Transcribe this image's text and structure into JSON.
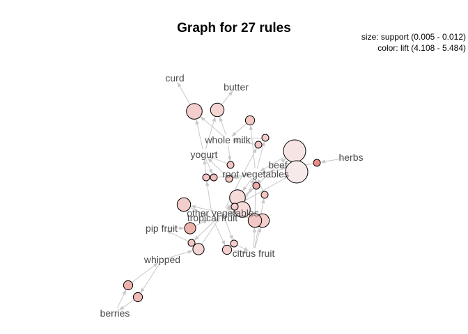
{
  "title": "Graph for 27 rules",
  "legend": {
    "size_text": "size: support (0.005 - 0.012)",
    "color_text": "color: lift (4.108 - 5.484)"
  },
  "colors": {
    "edge": "#c8c8c8",
    "rule_low_lift": "#f7eaea",
    "rule_mid_lift": "#f2c8c6",
    "rule_high_lift": "#e88880",
    "label": "#4a4a4a"
  },
  "items": [
    {
      "id": "curd",
      "label": "curd"
    },
    {
      "id": "butter",
      "label": "butter"
    },
    {
      "id": "whole_milk",
      "label": "whole milk"
    },
    {
      "id": "yogurt",
      "label": "yogurt"
    },
    {
      "id": "beef",
      "label": "beef"
    },
    {
      "id": "herbs",
      "label": "herbs"
    },
    {
      "id": "root_vegetables",
      "label": "root vegetables"
    },
    {
      "id": "other_vegetables",
      "label": "other vegetables"
    },
    {
      "id": "tropical_fruit",
      "label": "tropical fruit"
    },
    {
      "id": "pip_fruit",
      "label": "pip fruit"
    },
    {
      "id": "citrus_fruit",
      "label": "citrus fruit"
    },
    {
      "id": "whipped",
      "label": "whipped"
    },
    {
      "id": "berries",
      "label": "berries"
    }
  ],
  "rules": [
    {
      "id": "r1",
      "support": 0.009,
      "lift": 4.5
    },
    {
      "id": "r2",
      "support": 0.008,
      "lift": 4.4
    },
    {
      "id": "r3",
      "support": 0.006,
      "lift": 4.6
    },
    {
      "id": "r4",
      "support": 0.005,
      "lift": 4.5
    },
    {
      "id": "r5",
      "support": 0.005,
      "lift": 4.6
    },
    {
      "id": "r6",
      "support": 0.012,
      "lift": 4.2
    },
    {
      "id": "r7",
      "support": 0.012,
      "lift": 4.1
    },
    {
      "id": "r8",
      "support": 0.005,
      "lift": 5.4
    },
    {
      "id": "r9",
      "support": 0.005,
      "lift": 4.6
    },
    {
      "id": "r10",
      "support": 0.005,
      "lift": 4.6
    },
    {
      "id": "r11",
      "support": 0.005,
      "lift": 4.7
    },
    {
      "id": "r12",
      "support": 0.005,
      "lift": 4.6
    },
    {
      "id": "r13",
      "support": 0.005,
      "lift": 5.0
    },
    {
      "id": "r14",
      "support": 0.005,
      "lift": 4.6
    },
    {
      "id": "r15",
      "support": 0.009,
      "lift": 4.3
    },
    {
      "id": "r16",
      "support": 0.009,
      "lift": 4.3
    },
    {
      "id": "r17",
      "support": 0.005,
      "lift": 4.5
    },
    {
      "id": "r18",
      "support": 0.008,
      "lift": 4.5
    },
    {
      "id": "r19",
      "support": 0.008,
      "lift": 4.5
    },
    {
      "id": "r20",
      "support": 0.008,
      "lift": 4.6
    },
    {
      "id": "r21",
      "support": 0.007,
      "lift": 4.9
    },
    {
      "id": "r22",
      "support": 0.005,
      "lift": 4.6
    },
    {
      "id": "r23",
      "support": 0.006,
      "lift": 4.5
    },
    {
      "id": "r24",
      "support": 0.007,
      "lift": 4.4
    },
    {
      "id": "r25",
      "support": 0.005,
      "lift": 4.5
    },
    {
      "id": "r26",
      "support": 0.006,
      "lift": 4.9
    },
    {
      "id": "r27",
      "support": 0.006,
      "lift": 4.8
    }
  ],
  "edges": [
    [
      "r1",
      "curd"
    ],
    [
      "whole_milk",
      "r1"
    ],
    [
      "yogurt",
      "r1"
    ],
    [
      "r2",
      "butter"
    ],
    [
      "whole_milk",
      "r2"
    ],
    [
      "yogurt",
      "r2"
    ],
    [
      "r3",
      "whole_milk"
    ],
    [
      "root_vegetables",
      "r3"
    ],
    [
      "r4",
      "whole_milk"
    ],
    [
      "root_vegetables",
      "r4"
    ],
    [
      "r5",
      "whole_milk"
    ],
    [
      "other_vegetables",
      "r5"
    ],
    [
      "herbs",
      "r8"
    ],
    [
      "r8",
      "root_vegetables"
    ],
    [
      "beef",
      "r6"
    ],
    [
      "r6",
      "root_vegetables"
    ],
    [
      "beef",
      "r7"
    ],
    [
      "r7",
      "other_vegetables"
    ],
    [
      "r9",
      "yogurt"
    ],
    [
      "whole_milk",
      "r9"
    ],
    [
      "r10",
      "yogurt"
    ],
    [
      "tropical_fruit",
      "r10"
    ],
    [
      "r11",
      "root_vegetables"
    ],
    [
      "yogurt",
      "r11"
    ],
    [
      "r12",
      "yogurt"
    ],
    [
      "root_vegetables",
      "r12"
    ],
    [
      "r13",
      "root_vegetables"
    ],
    [
      "other_vegetables",
      "r13"
    ],
    [
      "r14",
      "root_vegetables"
    ],
    [
      "citrus_fruit",
      "r14"
    ],
    [
      "r15",
      "other_vegetables"
    ],
    [
      "root_vegetables",
      "r15"
    ],
    [
      "r16",
      "root_vegetables"
    ],
    [
      "tropical_fruit",
      "r16"
    ],
    [
      "r17",
      "other_vegetables"
    ],
    [
      "beef",
      "r17"
    ],
    [
      "r18",
      "tropical_fruit"
    ],
    [
      "other_vegetables",
      "r18"
    ],
    [
      "r19",
      "other_vegetables"
    ],
    [
      "citrus_fruit",
      "r19"
    ],
    [
      "r20",
      "root_vegetables"
    ],
    [
      "citrus_fruit",
      "r20"
    ],
    [
      "r21",
      "tropical_fruit"
    ],
    [
      "pip_fruit",
      "r21"
    ],
    [
      "r22",
      "pip_fruit"
    ],
    [
      "other_vegetables",
      "r22"
    ],
    [
      "r23",
      "citrus_fruit"
    ],
    [
      "tropical_fruit",
      "r23"
    ],
    [
      "r24",
      "other_vegetables"
    ],
    [
      "whipped",
      "r24"
    ],
    [
      "r25",
      "citrus_fruit"
    ],
    [
      "other_vegetables",
      "r25"
    ],
    [
      "r26",
      "whipped"
    ],
    [
      "berries",
      "r26"
    ],
    [
      "r27",
      "berries"
    ],
    [
      "whipped",
      "r27"
    ]
  ]
}
